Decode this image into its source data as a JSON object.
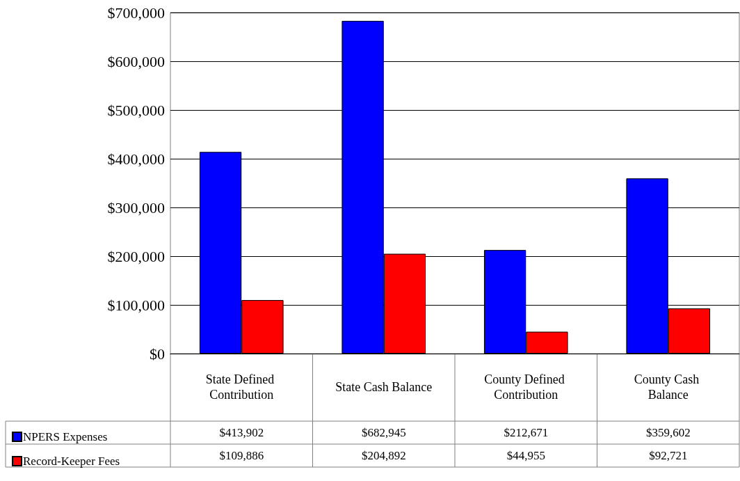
{
  "chart_data": {
    "type": "bar",
    "categories": [
      "State Defined Contribution",
      "State Cash Balance",
      "County Defined Contribution",
      "County Cash Balance"
    ],
    "series": [
      {
        "name": "NPERS Expenses",
        "color": "#0000ff",
        "values": [
          413902,
          682945,
          212671,
          359602
        ],
        "value_labels": [
          "$413,902",
          "$682,945",
          "$212,671",
          "$359,602"
        ]
      },
      {
        "name": "Record-Keeper Fees",
        "color": "#ff0000",
        "values": [
          109886,
          204892,
          44955,
          92721
        ],
        "value_labels": [
          "$109,886",
          "$204,892",
          "$44,955",
          "$92,721"
        ]
      }
    ],
    "ylim": [
      0,
      700000
    ],
    "yticks": [
      {
        "value": 0,
        "label": "$0"
      },
      {
        "value": 100000,
        "label": "$100,000"
      },
      {
        "value": 200000,
        "label": "$200,000"
      },
      {
        "value": 300000,
        "label": "$300,000"
      },
      {
        "value": 400000,
        "label": "$400,000"
      },
      {
        "value": 500000,
        "label": "$500,000"
      },
      {
        "value": 600000,
        "label": "$600,000"
      },
      {
        "value": 700000,
        "label": "$700,000"
      }
    ],
    "grid": "y",
    "legend": "bottom left"
  }
}
